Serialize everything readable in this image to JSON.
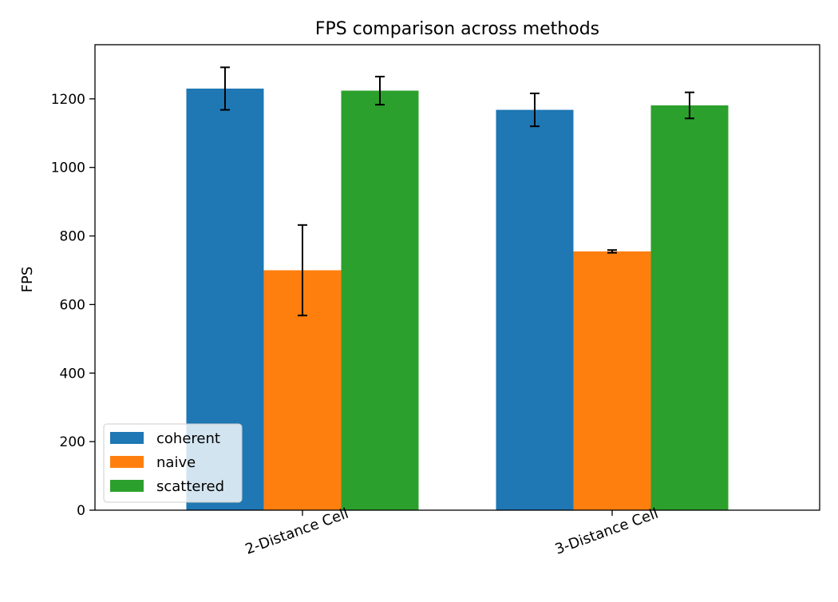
{
  "chart_data": {
    "type": "bar",
    "title": "FPS comparison across methods",
    "xlabel": "",
    "ylabel": "FPS",
    "categories": [
      "2-Distance Cell",
      "3-Distance Cell"
    ],
    "series": [
      {
        "name": "coherent",
        "color": "#1f77b4",
        "values": [
          1230,
          1168
        ],
        "errors": [
          62,
          48
        ]
      },
      {
        "name": "naive",
        "color": "#ff7f0e",
        "values": [
          700,
          755
        ],
        "errors": [
          132,
          4
        ]
      },
      {
        "name": "scattered",
        "color": "#2ca02c",
        "values": [
          1224,
          1181
        ],
        "errors": [
          41,
          38
        ]
      }
    ],
    "ylim": [
      0,
      1358
    ],
    "yticks": [
      0,
      200,
      400,
      600,
      800,
      1000,
      1200
    ],
    "grid": false,
    "legend": "lower-left"
  }
}
